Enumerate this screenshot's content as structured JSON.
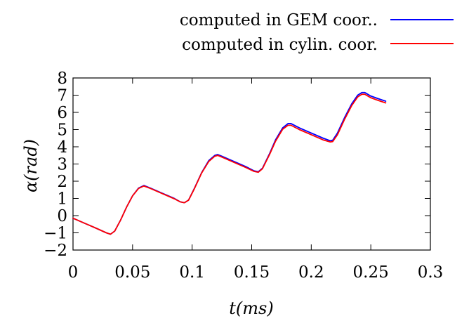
{
  "chart_data": {
    "type": "line",
    "title": "",
    "xlabel": "t(ms)",
    "ylabel": "α(rad)",
    "xlim": [
      0,
      0.3
    ],
    "ylim": [
      -2,
      8
    ],
    "x_ticks": [
      0,
      0.05,
      0.1,
      0.15,
      0.2,
      0.25,
      0.3
    ],
    "x_tick_labels": [
      "0",
      "0.05",
      "0.1",
      "0.15",
      "0.2",
      "0.25",
      "0.3"
    ],
    "y_ticks": [
      -2,
      -1,
      0,
      1,
      2,
      3,
      4,
      5,
      6,
      7,
      8
    ],
    "y_tick_labels": [
      "−2",
      "−1",
      "0",
      "1",
      "2",
      "3",
      "4",
      "5",
      "6",
      "7",
      "8"
    ],
    "grid": false,
    "legend_position": "top-right, outside plot",
    "series": [
      {
        "name": "computed in GEM coor..",
        "color": "#0000ff",
        "points": [
          [
            0,
            -0.15
          ],
          [
            0.01,
            -0.45
          ],
          [
            0.02,
            -0.75
          ],
          [
            0.028,
            -1.0
          ],
          [
            0.0315,
            -1.08
          ],
          [
            0.035,
            -0.9
          ],
          [
            0.04,
            -0.25
          ],
          [
            0.045,
            0.5
          ],
          [
            0.05,
            1.15
          ],
          [
            0.055,
            1.6
          ],
          [
            0.0595,
            1.75
          ],
          [
            0.065,
            1.6
          ],
          [
            0.075,
            1.3
          ],
          [
            0.085,
            1.0
          ],
          [
            0.09,
            0.8
          ],
          [
            0.0935,
            0.75
          ],
          [
            0.097,
            0.9
          ],
          [
            0.102,
            1.6
          ],
          [
            0.108,
            2.5
          ],
          [
            0.114,
            3.2
          ],
          [
            0.119,
            3.5
          ],
          [
            0.1215,
            3.55
          ],
          [
            0.125,
            3.45
          ],
          [
            0.135,
            3.15
          ],
          [
            0.145,
            2.85
          ],
          [
            0.152,
            2.6
          ],
          [
            0.1555,
            2.55
          ],
          [
            0.159,
            2.75
          ],
          [
            0.165,
            3.6
          ],
          [
            0.17,
            4.4
          ],
          [
            0.176,
            5.1
          ],
          [
            0.1805,
            5.35
          ],
          [
            0.183,
            5.35
          ],
          [
            0.19,
            5.1
          ],
          [
            0.2,
            4.8
          ],
          [
            0.21,
            4.5
          ],
          [
            0.216,
            4.35
          ],
          [
            0.218,
            4.38
          ],
          [
            0.222,
            4.8
          ],
          [
            0.228,
            5.7
          ],
          [
            0.234,
            6.5
          ],
          [
            0.239,
            7.0
          ],
          [
            0.2425,
            7.15
          ],
          [
            0.245,
            7.15
          ],
          [
            0.25,
            6.95
          ],
          [
            0.256,
            6.8
          ],
          [
            0.2625,
            6.65
          ]
        ]
      },
      {
        "name": "computed in cylin. coor.",
        "color": "#ff0000",
        "points": [
          [
            0,
            -0.15
          ],
          [
            0.01,
            -0.45
          ],
          [
            0.02,
            -0.75
          ],
          [
            0.028,
            -1.0
          ],
          [
            0.0315,
            -1.08
          ],
          [
            0.035,
            -0.9
          ],
          [
            0.04,
            -0.25
          ],
          [
            0.045,
            0.5
          ],
          [
            0.05,
            1.15
          ],
          [
            0.055,
            1.58
          ],
          [
            0.0595,
            1.72
          ],
          [
            0.065,
            1.58
          ],
          [
            0.075,
            1.28
          ],
          [
            0.085,
            0.98
          ],
          [
            0.09,
            0.8
          ],
          [
            0.0935,
            0.75
          ],
          [
            0.097,
            0.9
          ],
          [
            0.102,
            1.58
          ],
          [
            0.108,
            2.48
          ],
          [
            0.114,
            3.15
          ],
          [
            0.119,
            3.45
          ],
          [
            0.1215,
            3.5
          ],
          [
            0.125,
            3.4
          ],
          [
            0.135,
            3.1
          ],
          [
            0.145,
            2.8
          ],
          [
            0.152,
            2.57
          ],
          [
            0.1555,
            2.52
          ],
          [
            0.159,
            2.72
          ],
          [
            0.165,
            3.55
          ],
          [
            0.17,
            4.32
          ],
          [
            0.176,
            5.02
          ],
          [
            0.1805,
            5.25
          ],
          [
            0.183,
            5.25
          ],
          [
            0.19,
            5.0
          ],
          [
            0.2,
            4.7
          ],
          [
            0.21,
            4.4
          ],
          [
            0.216,
            4.28
          ],
          [
            0.218,
            4.3
          ],
          [
            0.222,
            4.7
          ],
          [
            0.228,
            5.6
          ],
          [
            0.234,
            6.4
          ],
          [
            0.239,
            6.9
          ],
          [
            0.2425,
            7.05
          ],
          [
            0.245,
            7.05
          ],
          [
            0.25,
            6.85
          ],
          [
            0.256,
            6.7
          ],
          [
            0.2625,
            6.55
          ]
        ]
      }
    ]
  }
}
